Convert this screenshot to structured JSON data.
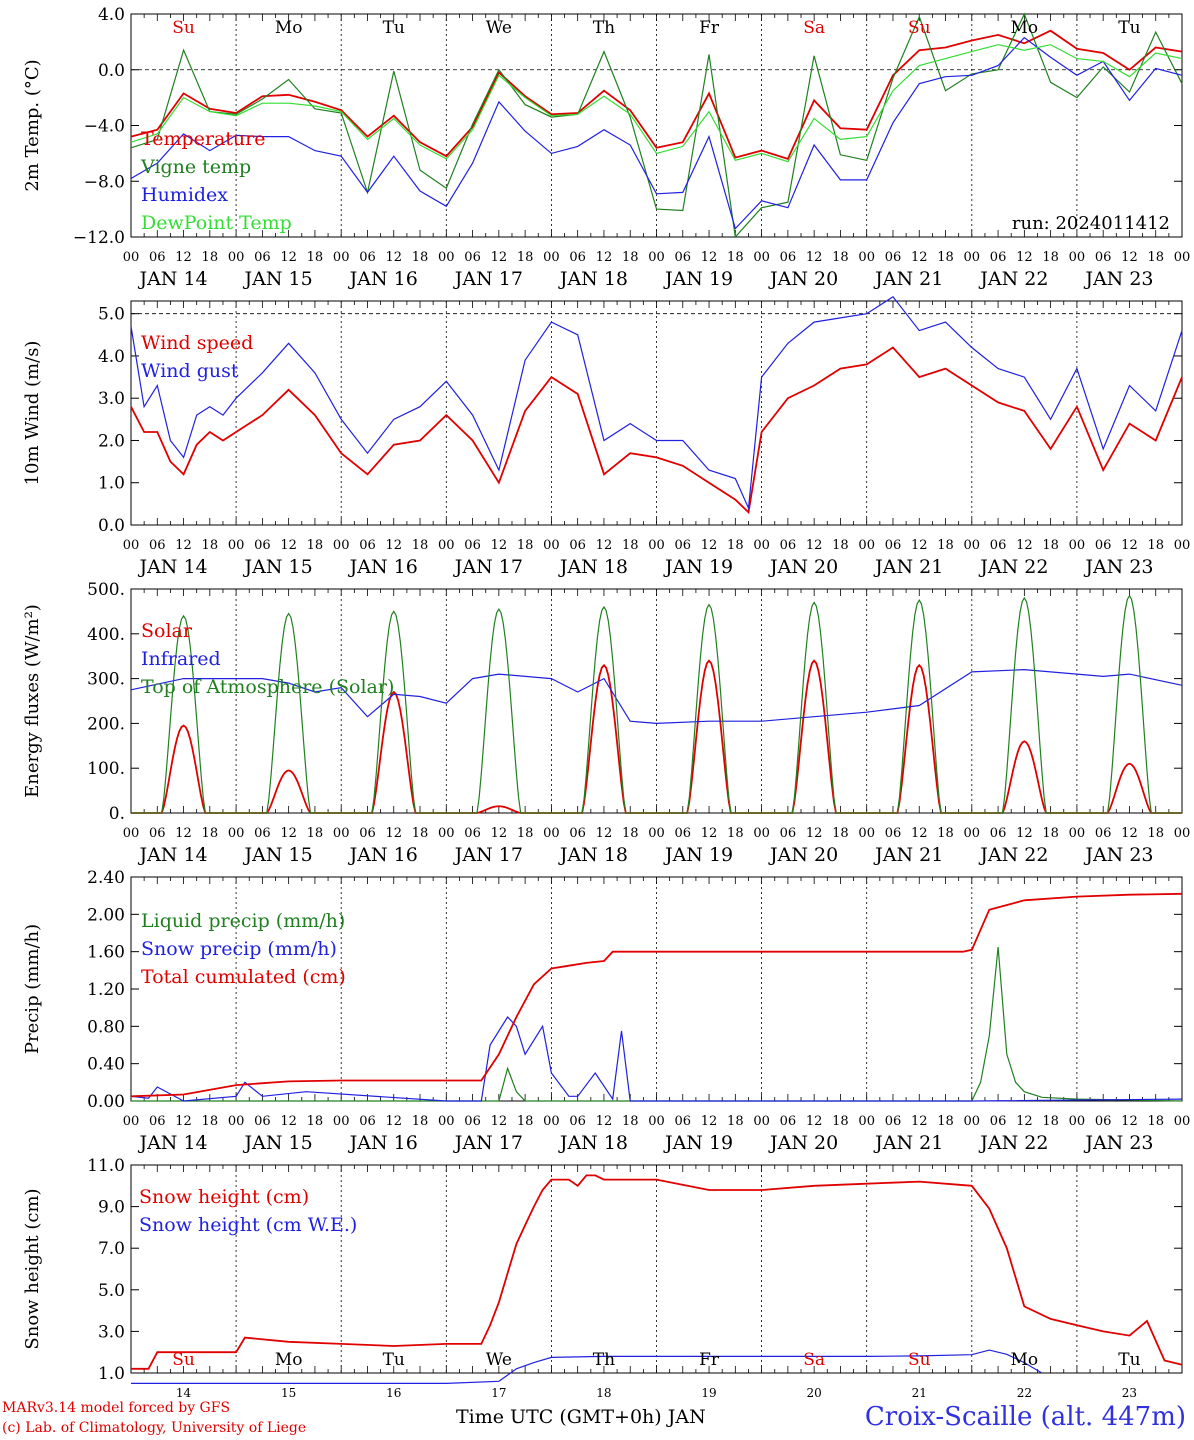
{
  "run_label": "run: 2024011412",
  "hour_ticks": [
    "00",
    "06",
    "12",
    "18"
  ],
  "day_labels": [
    "JAN 14",
    "JAN 15",
    "JAN 16",
    "JAN 17",
    "JAN 18",
    "JAN 19",
    "JAN 20",
    "JAN 21",
    "JAN 22",
    "JAN 23"
  ],
  "weekday_labels": [
    "Su",
    "Mo",
    "Tu",
    "We",
    "Th",
    "Fr",
    "Sa",
    "Su",
    "Mo",
    "Tu"
  ],
  "weekday_colors": [
    "#e00000",
    "#000000",
    "#000000",
    "#000000",
    "#000000",
    "#000000",
    "#e00000",
    "#e00000",
    "#000000",
    "#000000"
  ],
  "bottom_day_numbers": [
    "14",
    "15",
    "16",
    "17",
    "18",
    "19",
    "20",
    "21",
    "22",
    "23"
  ],
  "footer": {
    "credit_line1": "MARv3.14 model forced by GFS",
    "credit_line2": "(c) Lab. of Climatology, University of Liege",
    "x_axis_label": "Time UTC (GMT+0h) JAN",
    "station": "Croix-Scaille (alt. 447m)"
  },
  "chart_data": [
    {
      "type": "line",
      "ylabel": "2m Temp. (°C)",
      "ylim": [
        -12,
        4
      ],
      "ytick_values": [
        -12,
        -8,
        -4,
        0,
        4
      ],
      "ytick_labels": [
        "−12.0",
        "−8.0",
        "−4.0",
        "0.0",
        "4.0"
      ],
      "dashed_reference": 0,
      "legend_placement": "top-left",
      "series": [
        {
          "name": "Temperature",
          "color": "#e00000",
          "t": [
            0,
            6,
            12,
            18,
            24,
            30,
            36,
            42,
            48,
            54,
            60,
            66,
            72,
            78,
            84,
            90,
            96,
            102,
            108,
            114,
            120,
            126,
            132,
            138,
            144,
            150,
            156,
            162,
            168,
            174,
            180,
            186,
            192,
            198,
            204,
            210,
            216,
            222,
            228,
            234,
            240
          ],
          "v": [
            -4.8,
            -4.3,
            -1.7,
            -2.8,
            -3.1,
            -1.9,
            -1.8,
            -2.3,
            -2.9,
            -4.8,
            -3.3,
            -5.2,
            -6.2,
            -4.1,
            -0.2,
            -1.9,
            -3.2,
            -3.1,
            -1.5,
            -2.9,
            -5.6,
            -5.2,
            -1.7,
            -6.3,
            -5.8,
            -6.4,
            -2.2,
            -4.2,
            -4.3,
            -0.4,
            1.4,
            1.6,
            2.1,
            2.5,
            1.9,
            2.8,
            1.5,
            1.2,
            0.0,
            1.6,
            1.3
          ]
        },
        {
          "name": "Vigne temp",
          "color": "#208020",
          "t": [
            0,
            6,
            12,
            18,
            24,
            30,
            36,
            42,
            48,
            54,
            60,
            66,
            72,
            78,
            84,
            90,
            96,
            102,
            108,
            114,
            120,
            126,
            132,
            138,
            144,
            150,
            156,
            162,
            168,
            174,
            180,
            186,
            192,
            198,
            204,
            210,
            216,
            222,
            228,
            234,
            240
          ],
          "v": [
            -5.6,
            -5.0,
            1.4,
            -3.0,
            -3.2,
            -2.1,
            -0.7,
            -2.8,
            -3.1,
            -8.8,
            -0.1,
            -7.2,
            -8.5,
            -3.9,
            0.0,
            -2.5,
            -3.4,
            -3.2,
            1.3,
            -3.4,
            -10.0,
            -10.1,
            1.1,
            -12.0,
            -9.9,
            -9.5,
            1.0,
            -6.1,
            -6.5,
            -0.6,
            3.8,
            -1.5,
            -0.3,
            0.0,
            4.0,
            -0.9,
            -2.0,
            0.2,
            -1.6,
            2.7,
            -1.0
          ]
        },
        {
          "name": "Humidex",
          "color": "#2020e0",
          "t": [
            0,
            6,
            12,
            18,
            24,
            30,
            36,
            42,
            48,
            54,
            60,
            66,
            72,
            78,
            84,
            90,
            96,
            102,
            108,
            114,
            120,
            126,
            132,
            138,
            144,
            150,
            156,
            162,
            168,
            174,
            180,
            186,
            192,
            198,
            204,
            210,
            216,
            222,
            228,
            234,
            240
          ],
          "v": [
            -7.8,
            -6.7,
            -4.6,
            -5.8,
            -4.7,
            -4.8,
            -4.8,
            -5.8,
            -6.2,
            -8.8,
            -6.2,
            -8.7,
            -9.8,
            -6.7,
            -2.3,
            -4.4,
            -6.0,
            -5.5,
            -4.3,
            -5.4,
            -8.9,
            -8.8,
            -4.8,
            -11.4,
            -9.4,
            -9.9,
            -5.4,
            -7.9,
            -7.9,
            -3.8,
            -1.0,
            -0.5,
            -0.4,
            0.3,
            2.3,
            0.9,
            -0.4,
            0.6,
            -2.2,
            0.1,
            -0.4
          ]
        },
        {
          "name": "DewPoint Temp",
          "color": "#33dd33",
          "t": [
            0,
            6,
            12,
            18,
            24,
            30,
            36,
            42,
            48,
            54,
            60,
            66,
            72,
            78,
            84,
            90,
            96,
            102,
            108,
            114,
            120,
            126,
            132,
            138,
            144,
            150,
            156,
            162,
            168,
            174,
            180,
            186,
            192,
            198,
            204,
            210,
            216,
            222,
            228,
            234,
            240
          ],
          "v": [
            -5.2,
            -4.6,
            -2.0,
            -3.0,
            -3.3,
            -2.4,
            -2.4,
            -2.6,
            -3.0,
            -5.0,
            -3.5,
            -5.4,
            -6.4,
            -4.3,
            -0.4,
            -2.0,
            -3.3,
            -3.2,
            -1.9,
            -3.2,
            -6.0,
            -5.5,
            -3.0,
            -6.5,
            -6.0,
            -6.6,
            -3.5,
            -5.0,
            -4.8,
            -1.5,
            0.3,
            0.8,
            1.3,
            1.8,
            1.4,
            1.8,
            0.8,
            0.6,
            -0.5,
            1.2,
            0.8
          ]
        }
      ]
    },
    {
      "type": "line",
      "ylabel": "10m Wind (m/s)",
      "ylim": [
        0,
        5.3
      ],
      "ytick_values": [
        0,
        1,
        2,
        3,
        4,
        5
      ],
      "ytick_labels": [
        "0.0",
        "1.0",
        "2.0",
        "3.0",
        "4.0",
        "5.0"
      ],
      "dashed_reference": 5,
      "legend_placement": "top-left",
      "series": [
        {
          "name": "Wind speed",
          "color": "#e00000",
          "t": [
            0,
            3,
            6,
            9,
            12,
            15,
            18,
            21,
            24,
            30,
            36,
            42,
            48,
            54,
            60,
            66,
            72,
            78,
            84,
            90,
            96,
            102,
            108,
            114,
            120,
            126,
            132,
            138,
            141,
            144,
            150,
            156,
            162,
            168,
            174,
            180,
            186,
            192,
            198,
            201,
            204,
            210,
            216,
            222,
            228,
            234,
            240
          ],
          "v": [
            2.8,
            2.2,
            2.2,
            1.5,
            1.2,
            1.9,
            2.2,
            2.0,
            2.2,
            2.6,
            3.2,
            2.6,
            1.7,
            1.2,
            1.9,
            2.0,
            2.6,
            2.0,
            1.0,
            2.7,
            3.5,
            3.1,
            1.2,
            1.7,
            1.6,
            1.4,
            1.0,
            0.6,
            0.3,
            2.2,
            3.0,
            3.3,
            3.7,
            3.8,
            4.2,
            3.5,
            3.7,
            3.3,
            2.9,
            2.8,
            2.7,
            1.8,
            2.8,
            1.3,
            2.4,
            2.0,
            3.5
          ]
        },
        {
          "name": "Wind gust",
          "color": "#2020e0",
          "t": [
            0,
            3,
            6,
            9,
            12,
            15,
            18,
            21,
            24,
            30,
            36,
            42,
            48,
            54,
            60,
            66,
            72,
            78,
            84,
            90,
            96,
            102,
            108,
            114,
            120,
            126,
            132,
            138,
            141,
            144,
            150,
            156,
            162,
            168,
            174,
            180,
            186,
            192,
            198,
            201,
            204,
            210,
            216,
            222,
            228,
            234,
            240
          ],
          "v": [
            4.7,
            2.8,
            3.3,
            2.0,
            1.6,
            2.6,
            2.8,
            2.6,
            3.0,
            3.6,
            4.3,
            3.6,
            2.5,
            1.7,
            2.5,
            2.8,
            3.4,
            2.6,
            1.3,
            3.9,
            4.8,
            4.5,
            2.0,
            2.4,
            2.0,
            2.0,
            1.3,
            1.1,
            0.4,
            3.5,
            4.3,
            4.8,
            4.9,
            5.0,
            5.4,
            4.6,
            4.8,
            4.2,
            3.7,
            3.6,
            3.5,
            2.5,
            3.7,
            1.8,
            3.3,
            2.7,
            4.6
          ]
        }
      ]
    },
    {
      "type": "line",
      "ylabel": "Energy fluxes (W/m²)",
      "ylim": [
        0,
        500
      ],
      "ytick_values": [
        0,
        100,
        200,
        300,
        400,
        500
      ],
      "ytick_labels": [
        "0.",
        "100.",
        "200.",
        "300.",
        "400.",
        "500."
      ],
      "legend_placement": "top-left",
      "series": [
        {
          "name": "Solar",
          "color": "#e00000",
          "day_peaks": [
            195,
            95,
            270,
            15,
            330,
            340,
            340,
            330,
            160,
            110
          ]
        },
        {
          "name": "Infrared",
          "color": "#2020e0",
          "t": [
            0,
            12,
            24,
            30,
            36,
            42,
            48,
            54,
            60,
            66,
            72,
            78,
            84,
            96,
            102,
            108,
            114,
            120,
            132,
            144,
            156,
            168,
            180,
            192,
            204,
            216,
            222,
            228,
            240
          ],
          "v": [
            275,
            300,
            300,
            300,
            290,
            270,
            280,
            215,
            265,
            260,
            245,
            300,
            310,
            300,
            270,
            300,
            205,
            200,
            205,
            205,
            215,
            225,
            240,
            315,
            320,
            310,
            305,
            310,
            285
          ]
        },
        {
          "name": "Top of Atmosphere (Solar)",
          "color": "#208020",
          "day_peaks": [
            440,
            445,
            450,
            455,
            460,
            465,
            470,
            475,
            480,
            485
          ]
        }
      ]
    },
    {
      "type": "line",
      "ylabel": "Precip (mm/h)",
      "ylim": [
        0,
        2.4
      ],
      "ytick_values": [
        0,
        0.4,
        0.8,
        1.2,
        1.6,
        2.0,
        2.4
      ],
      "ytick_labels": [
        "0.00",
        "0.40",
        "0.80",
        "1.20",
        "1.60",
        "2.00",
        "2.40"
      ],
      "legend_placement": "top-left",
      "series": [
        {
          "name": "Liquid precip (mm/h)",
          "color": "#208020",
          "t": [
            0,
            72,
            84,
            86,
            88,
            90,
            192,
            194,
            196,
            198,
            200,
            202,
            204,
            208,
            216,
            240
          ],
          "v": [
            0,
            0,
            0,
            0.35,
            0.1,
            0,
            0,
            0.2,
            0.7,
            1.65,
            0.5,
            0.2,
            0.1,
            0.04,
            0.02,
            0
          ]
        },
        {
          "name": "Snow precip (mm/h)",
          "color": "#2020e0",
          "t": [
            0,
            4,
            6,
            12,
            24,
            26,
            30,
            40,
            72,
            80,
            82,
            86,
            88,
            90,
            94,
            96,
            100,
            102,
            106,
            110,
            112,
            114,
            120,
            144,
            168,
            192,
            240
          ],
          "v": [
            0.05,
            0.03,
            0.15,
            0,
            0.05,
            0.2,
            0.05,
            0.1,
            0,
            0,
            0.6,
            0.9,
            0.8,
            0.5,
            0.8,
            0.3,
            0.05,
            0.05,
            0.3,
            0.02,
            0.75,
            0,
            0,
            0,
            0,
            0,
            0.02
          ]
        },
        {
          "name": "Total cumulated (cm)",
          "color": "#e00000",
          "t": [
            0,
            12,
            24,
            36,
            48,
            60,
            72,
            80,
            84,
            88,
            92,
            96,
            100,
            104,
            108,
            110,
            120,
            144,
            168,
            190,
            192,
            196,
            204,
            216,
            228,
            240
          ],
          "v": [
            0.05,
            0.07,
            0.17,
            0.21,
            0.22,
            0.22,
            0.22,
            0.22,
            0.5,
            0.9,
            1.25,
            1.42,
            1.45,
            1.48,
            1.5,
            1.6,
            1.6,
            1.6,
            1.6,
            1.6,
            1.62,
            2.05,
            2.15,
            2.19,
            2.21,
            2.22
          ]
        }
      ]
    },
    {
      "type": "line",
      "ylabel": "Snow height (cm)",
      "ylim": [
        1,
        11
      ],
      "ytick_values": [
        1,
        3,
        5,
        7,
        9,
        11
      ],
      "ytick_labels": [
        "1.0",
        "3.0",
        "5.0",
        "7.0",
        "9.0",
        "11.0"
      ],
      "legend_placement": "top-left",
      "series": [
        {
          "name": "Snow height (cm)",
          "color": "#e00000",
          "t": [
            0,
            4,
            6,
            12,
            24,
            26,
            36,
            48,
            60,
            72,
            80,
            82,
            84,
            86,
            88,
            90,
            92,
            94,
            96,
            100,
            102,
            104,
            106,
            108,
            114,
            120,
            132,
            144,
            156,
            168,
            180,
            192,
            196,
            200,
            204,
            210,
            216,
            222,
            228,
            232,
            236,
            240
          ],
          "v": [
            1.2,
            1.2,
            2.0,
            2.0,
            2.0,
            2.7,
            2.5,
            2.4,
            2.3,
            2.4,
            2.4,
            3.3,
            4.4,
            5.8,
            7.2,
            8.1,
            9.0,
            9.8,
            10.3,
            10.3,
            10.0,
            10.5,
            10.5,
            10.3,
            10.3,
            10.3,
            9.8,
            9.8,
            10.0,
            10.1,
            10.2,
            10.0,
            8.9,
            7.0,
            4.2,
            3.6,
            3.3,
            3.0,
            2.8,
            3.5,
            1.6,
            1.4
          ]
        },
        {
          "name": "Snow height (cm W.E.)",
          "color": "#2020e0",
          "t": [
            0,
            72,
            84,
            88,
            92,
            96,
            108,
            120,
            144,
            168,
            180,
            192,
            196,
            200,
            204,
            208
          ],
          "v": [
            0.5,
            0.5,
            0.6,
            1.2,
            1.5,
            1.75,
            1.8,
            1.8,
            1.8,
            1.8,
            1.82,
            1.88,
            2.1,
            1.9,
            1.5,
            1.0
          ]
        }
      ]
    }
  ]
}
